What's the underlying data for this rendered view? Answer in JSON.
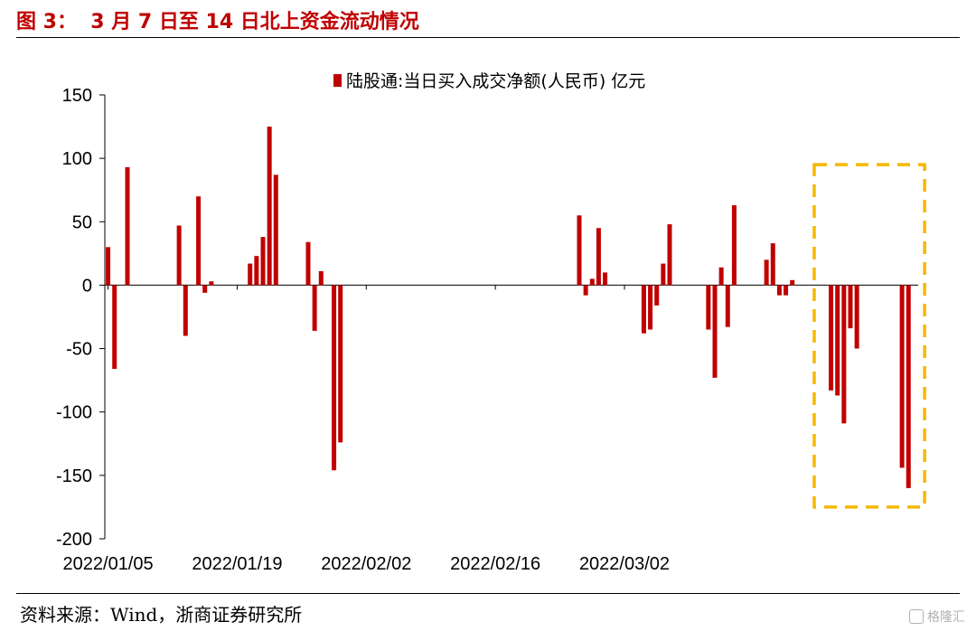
{
  "figure": {
    "title": "图 3：  3 月 7 日至 14 日北上资金流动情况",
    "source": "资料来源：Wind，浙商证券研究所",
    "watermark": "格隆汇"
  },
  "colors": {
    "bar": "#c00000",
    "highlight": "#f5b800",
    "title": "#c00000"
  },
  "chart_data": {
    "type": "bar",
    "title": "",
    "xlabel": "",
    "ylabel": "",
    "ylim": [
      -200,
      150
    ],
    "yticks": [
      150,
      100,
      50,
      0,
      -50,
      -100,
      -150,
      -200
    ],
    "grid": false,
    "legend": {
      "position": "top-center",
      "entries": [
        "陆股通:当日买入成交净额(人民币) 亿元"
      ]
    },
    "series": [
      {
        "name": "陆股通:当日买入成交净额(人民币) 亿元",
        "values": [
          30,
          -66,
          0,
          93,
          0,
          0,
          0,
          0,
          0,
          0,
          0,
          47,
          -40,
          0,
          70,
          -6,
          3,
          0,
          0,
          0,
          0,
          0,
          17,
          23,
          38,
          125,
          87,
          0,
          0,
          0,
          0,
          34,
          -36,
          11,
          0,
          -146,
          -124,
          0,
          0,
          0,
          0,
          0,
          0,
          0,
          0,
          0,
          0,
          0,
          0,
          0,
          0,
          0,
          0,
          0,
          0,
          0,
          0,
          0,
          0,
          0,
          0,
          0,
          0,
          0,
          0,
          0,
          0,
          0,
          0,
          0,
          0,
          0,
          0,
          55,
          -8,
          5,
          45,
          10,
          0,
          0,
          0,
          0,
          0,
          -38,
          -35,
          -16,
          17,
          48,
          0,
          0,
          0,
          0,
          0,
          -35,
          -73,
          14,
          -33,
          63,
          0,
          0,
          0,
          0,
          20,
          33,
          -8,
          -8,
          4,
          0,
          0,
          0,
          0,
          0,
          -83,
          -87,
          -109,
          -34,
          -50,
          0,
          0,
          0,
          0,
          0,
          0,
          -144,
          -160,
          0
        ]
      }
    ],
    "xtick_labels": [
      "2022/01/05",
      "2022/01/19",
      "2022/02/02",
      "2022/02/16",
      "2022/03/02"
    ],
    "xtick_index": [
      0,
      20,
      40,
      60,
      80
    ],
    "highlight_box": {
      "from_index": 112,
      "to_index": 125,
      "y_range": [
        -175,
        95
      ]
    }
  }
}
